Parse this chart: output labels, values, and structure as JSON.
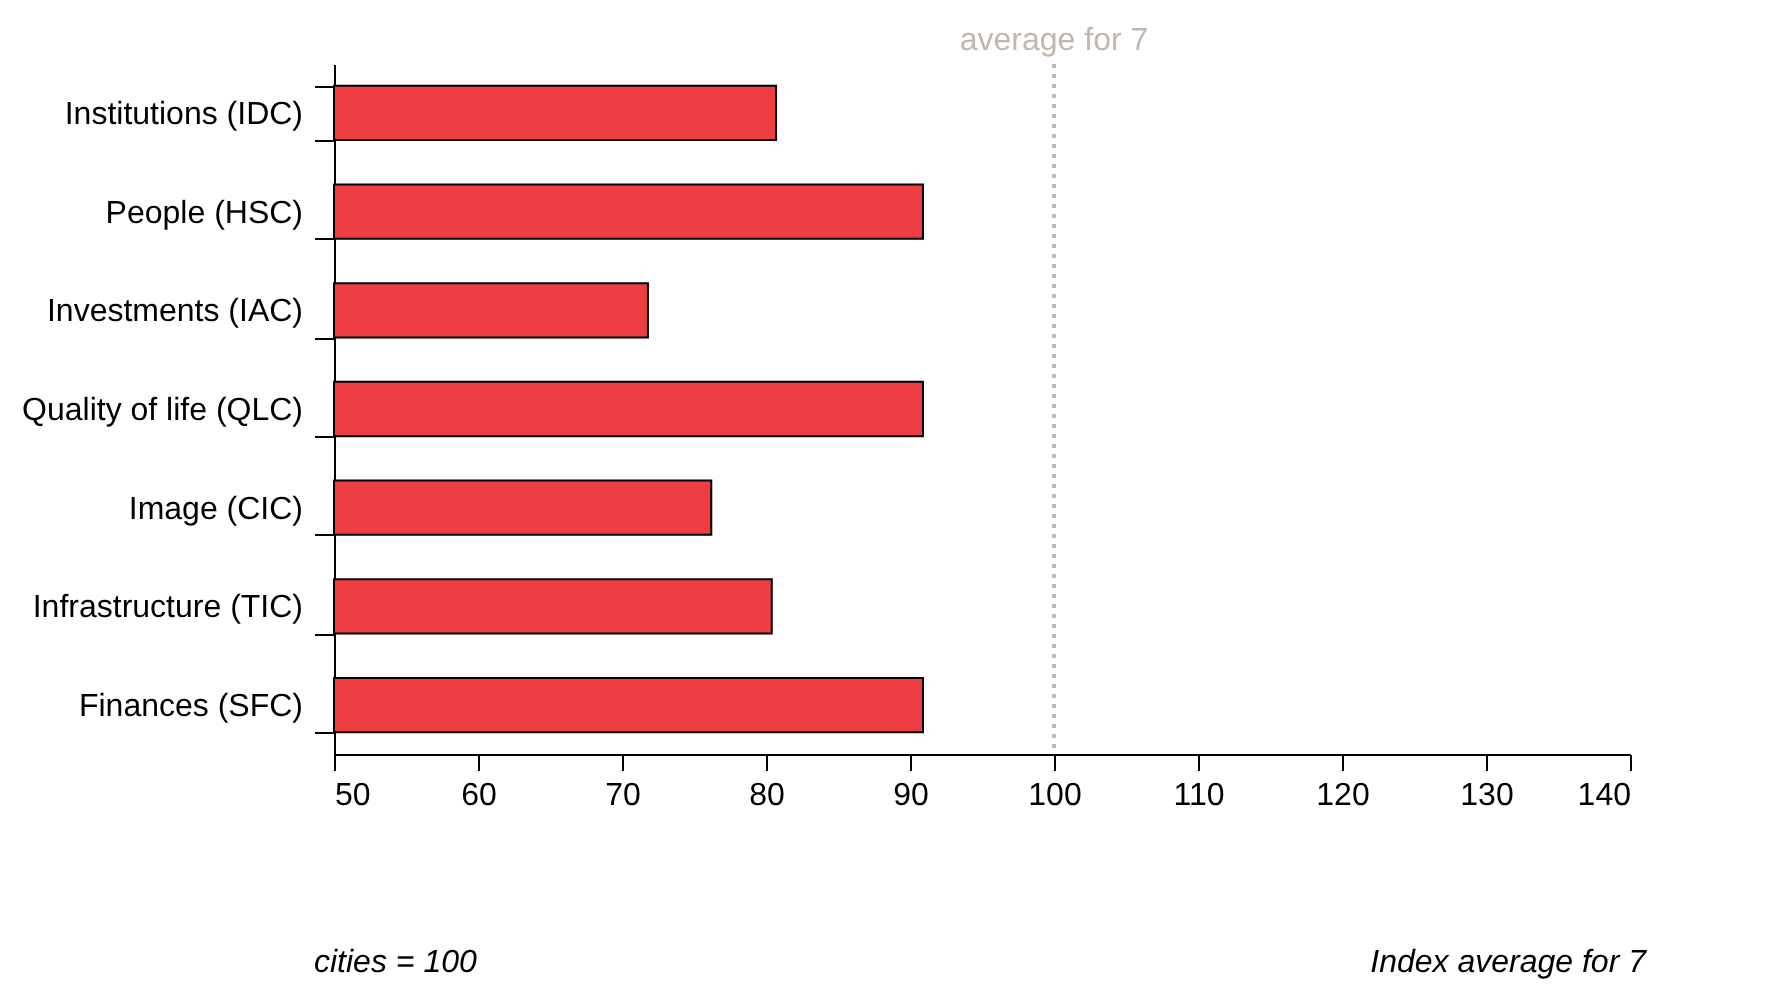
{
  "chart_data": {
    "type": "bar",
    "orientation": "horizontal",
    "categories": [
      "Institutions (IDC)",
      "People (HSC)",
      "Investments (IAC)",
      "Quality of life (QLC)",
      "Image (CIC)",
      "Infrastructure (TIC)",
      "Finances (SFC)"
    ],
    "values": [
      80.7,
      90.9,
      71.8,
      90.9,
      76.2,
      80.4,
      90.9
    ],
    "color": "#ee3e44",
    "xlim": [
      50,
      140
    ],
    "xticks": [
      50,
      60,
      70,
      80,
      90,
      100,
      110,
      120,
      130,
      140
    ],
    "grid": false,
    "ref_lines": [
      {
        "axis": "x",
        "value": 100,
        "label": "average for 7",
        "color": "#c0b8ae",
        "line_style": "dotted"
      }
    ],
    "annotations": [
      "cities = 100",
      "Index average for 7"
    ]
  }
}
